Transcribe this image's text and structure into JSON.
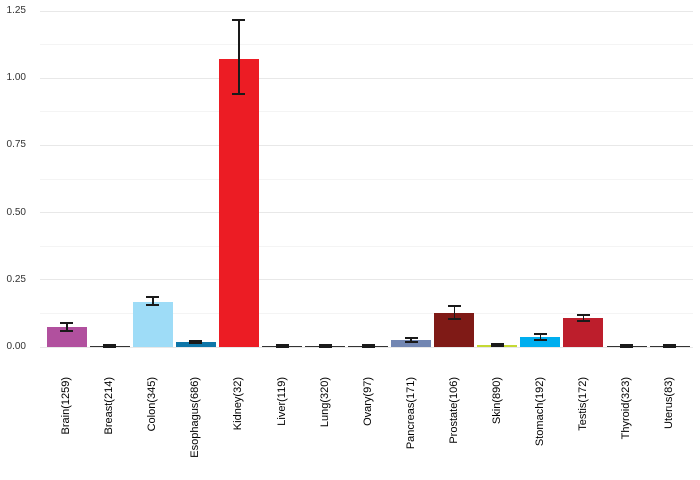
{
  "chart_data": {
    "type": "bar",
    "title": "",
    "xlabel": "",
    "ylabel": "",
    "legend": "none",
    "grid": true,
    "background": "#ffffff",
    "grid_major_color": "#e8e8e8",
    "grid_minor_color": "#f4f4f4",
    "error_bar_color": "#1a1a1a",
    "ylim": [
      0,
      1.25
    ],
    "yticks": [
      0,
      0.25,
      0.5,
      0.75,
      1.0,
      1.25
    ],
    "ytick_labels": [
      "0.00",
      "0.25",
      "0.50",
      "0.75",
      "1.00",
      "1.25"
    ],
    "minor_grid_step": 0.125,
    "categories": [
      "Brain(1259)",
      "Breast(214)",
      "Colon(345)",
      "Esophagus(686)",
      "Kidney(32)",
      "Liver(119)",
      "Lung(320)",
      "Ovary(97)",
      "Pancreas(171)",
      "Prostate(106)",
      "Skin(890)",
      "Stomach(192)",
      "Testis(172)",
      "Thyroid(323)",
      "Uterus(83)"
    ],
    "values": [
      0.073,
      0.004,
      0.167,
      0.019,
      1.07,
      0.004,
      0.004,
      0.004,
      0.027,
      0.128,
      0.006,
      0.037,
      0.107,
      0.004,
      0.004
    ],
    "error_low": [
      0.059,
      0.002,
      0.155,
      0.014,
      0.94,
      0.002,
      0.002,
      0.002,
      0.02,
      0.104,
      0.003,
      0.027,
      0.098,
      0.002,
      0.002
    ],
    "error_high": [
      0.089,
      0.006,
      0.186,
      0.024,
      1.215,
      0.006,
      0.006,
      0.006,
      0.034,
      0.154,
      0.01,
      0.047,
      0.119,
      0.006,
      0.006
    ],
    "bar_colors": [
      "#b1509e",
      "#333333",
      "#9edcf7",
      "#0e76a8",
      "#ec1c24",
      "#333333",
      "#333333",
      "#333333",
      "#7286b2",
      "#7f1a16",
      "#c5d934",
      "#00aeef",
      "#bd1e2c",
      "#333333",
      "#333333"
    ]
  }
}
